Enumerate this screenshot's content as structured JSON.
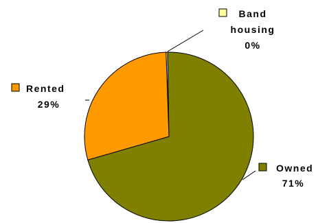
{
  "chart_data": {
    "type": "pie",
    "title": "",
    "slices": [
      {
        "label_lines": [
          "Band",
          "housing"
        ],
        "value": 0.3,
        "value_label": "0%",
        "color": "#ffffa0"
      },
      {
        "label_lines": [
          "Owned"
        ],
        "value": 71,
        "value_label": "71%",
        "color": "#808000"
      },
      {
        "label_lines": [
          "Rented"
        ],
        "value": 29,
        "value_label": "29%",
        "color": "#ff9900"
      }
    ]
  }
}
